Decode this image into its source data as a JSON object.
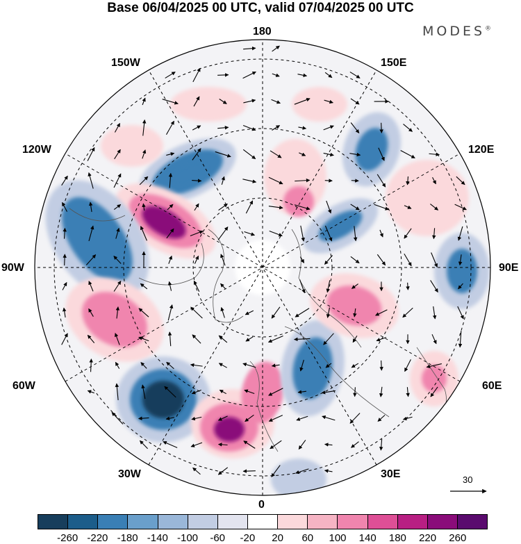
{
  "title": "Base 06/04/2025 00 UTC, valid 07/04/2025 00 UTC",
  "brand": "MODES",
  "brand_mark": "®",
  "longitude_labels": {
    "lon_180": "180",
    "lon_150w": "150W",
    "lon_150e": "150E",
    "lon_120w": "120W",
    "lon_120e": "120E",
    "lon_90w": "90W",
    "lon_90e": "90E",
    "lon_60w": "60W",
    "lon_60e": "60E",
    "lon_30w": "30W",
    "lon_30e": "30E",
    "lon_0": "0"
  },
  "vector_scale_label": "30",
  "colorbar": {
    "colors": [
      "#173e5c",
      "#1c5d8a",
      "#3a7fb5",
      "#6a9fcb",
      "#9ab7d9",
      "#c2cde3",
      "#e3e4ef",
      "#ffffff",
      "#fbd9dc",
      "#f6b4c4",
      "#f085ae",
      "#de4f96",
      "#b81f83",
      "#8a0c7a",
      "#5a0b6e"
    ],
    "tick_labels": [
      "-260",
      "-220",
      "-180",
      "-140",
      "-100",
      "-60",
      "-20",
      "20",
      "60",
      "100",
      "140",
      "180",
      "220",
      "260"
    ]
  },
  "colors": {
    "negative_strong": "#173e5c",
    "negative_mid": "#3a7fb5",
    "negative_weak": "#c2cde3",
    "positive_weak": "#fbd9dc",
    "positive_mid": "#f085ae",
    "positive_strong": "#8a0c7a"
  }
}
